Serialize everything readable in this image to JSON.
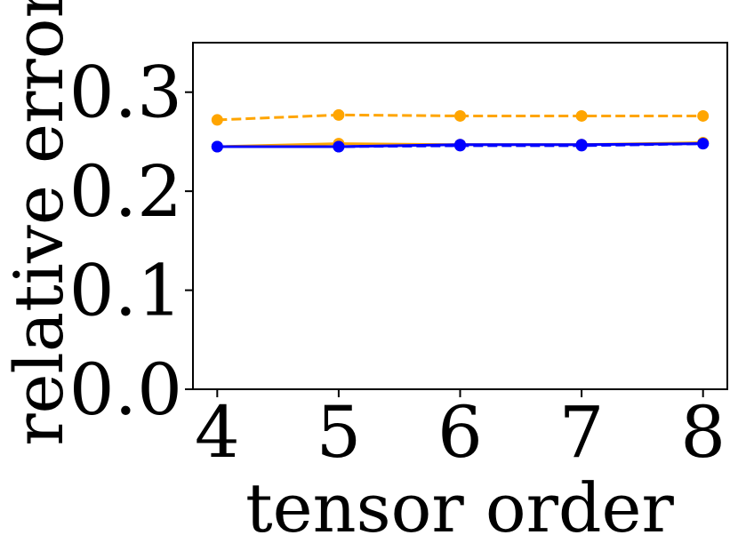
{
  "chart_data": {
    "type": "line",
    "title": "",
    "xlabel": "tensor order",
    "ylabel": "relative error",
    "x": [
      4,
      5,
      6,
      7,
      8
    ],
    "xticks": [
      "4",
      "5",
      "6",
      "7",
      "8"
    ],
    "yticks": [
      "0.0",
      "0.1",
      "0.2",
      "0.3"
    ],
    "ytick_values": [
      0.0,
      0.1,
      0.2,
      0.3
    ],
    "xlim": [
      3.8,
      8.2
    ],
    "ylim": [
      0,
      0.35
    ],
    "grid": false,
    "series": [
      {
        "color": "#FFA500",
        "style": "dashed",
        "marker": "circle",
        "values": [
          0.272,
          0.277,
          0.276,
          0.276,
          0.276
        ]
      },
      {
        "color": "#FFA500",
        "style": "solid",
        "marker": "circle",
        "values": [
          0.245,
          0.248,
          0.247,
          0.247,
          0.249
        ]
      },
      {
        "color": "#0000FF",
        "style": "dashed",
        "marker": "circle",
        "values": [
          0.245,
          0.245,
          0.246,
          0.246,
          0.248
        ]
      },
      {
        "color": "#0000FF",
        "style": "solid",
        "marker": "circle",
        "values": [
          0.245,
          0.245,
          0.247,
          0.247,
          0.248
        ]
      }
    ]
  }
}
